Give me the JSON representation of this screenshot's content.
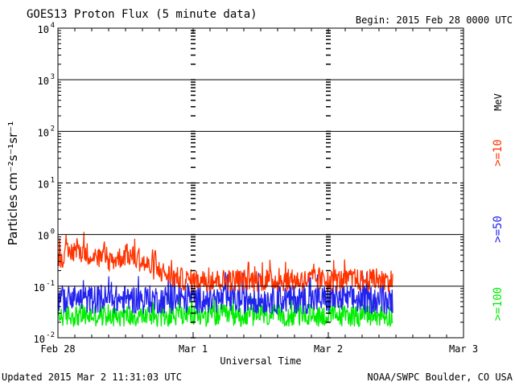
{
  "header": {
    "title": "GOES13 Proton Flux (5 minute data)",
    "begin": "Begin: 2015 Feb 28 0000 UTC"
  },
  "footer": {
    "updated": "Updated 2015 Mar  2 11:31:03 UTC",
    "credit": "NOAA/SWPC Boulder, CO USA"
  },
  "chart_data": {
    "type": "line",
    "title": "GOES13 Proton Flux (5 minute data)",
    "xlabel": "Universal Time",
    "ylabel": "Particles cm⁻²s⁻¹sr⁻¹",
    "y_scale": "log",
    "ylim": [
      0.01,
      10000
    ],
    "xlim_days": [
      0,
      3
    ],
    "x_ticks": [
      {
        "day": 0,
        "label": "Feb 28"
      },
      {
        "day": 1,
        "label": "Mar 1"
      },
      {
        "day": 2,
        "label": "Mar 2"
      },
      {
        "day": 3,
        "label": "Mar 3"
      }
    ],
    "y_ticks": [
      {
        "value": 10000,
        "base": "10",
        "exp": "4"
      },
      {
        "value": 1000,
        "base": "10",
        "exp": "3"
      },
      {
        "value": 100,
        "base": "10",
        "exp": "2"
      },
      {
        "value": 10,
        "base": "10",
        "exp": "1"
      },
      {
        "value": 1,
        "base": "10",
        "exp": "0"
      },
      {
        "value": 0.1,
        "base": "10",
        "exp": "-1"
      },
      {
        "value": 0.01,
        "base": "10",
        "exp": "-2"
      }
    ],
    "reference_lines": [
      {
        "value": 1000,
        "style": "solid"
      },
      {
        "value": 100,
        "style": "solid"
      },
      {
        "value": 10,
        "style": "dashed"
      },
      {
        "value": 1,
        "style": "solid"
      },
      {
        "value": 0.1,
        "style": "solid"
      }
    ],
    "unit_label": "MeV",
    "series": [
      {
        "name": ">=10",
        "color": "#ff3300",
        "x_days": [
          0,
          0.05,
          0.1,
          0.15,
          0.2,
          0.25,
          0.3,
          0.35,
          0.4,
          0.45,
          0.5,
          0.55,
          0.6,
          0.65,
          0.7,
          0.75,
          0.8,
          0.85,
          0.9,
          0.95,
          1.0,
          1.05,
          1.1,
          1.15,
          1.2,
          1.25,
          1.3,
          1.35,
          1.4,
          1.45,
          1.5,
          1.55,
          1.6,
          1.65,
          1.7,
          1.75,
          1.8,
          1.85,
          1.9,
          1.95,
          2.0,
          2.05,
          2.1,
          2.15,
          2.2,
          2.25,
          2.3,
          2.35,
          2.4,
          2.45,
          2.48
        ],
        "values": [
          0.35,
          0.4,
          0.45,
          0.5,
          0.45,
          0.4,
          0.35,
          0.3,
          0.32,
          0.35,
          0.4,
          0.38,
          0.32,
          0.26,
          0.22,
          0.2,
          0.17,
          0.15,
          0.14,
          0.13,
          0.13,
          0.13,
          0.13,
          0.13,
          0.13,
          0.13,
          0.13,
          0.13,
          0.13,
          0.13,
          0.13,
          0.13,
          0.13,
          0.13,
          0.13,
          0.13,
          0.13,
          0.13,
          0.13,
          0.13,
          0.13,
          0.13,
          0.13,
          0.13,
          0.13,
          0.13,
          0.13,
          0.13,
          0.13,
          0.13,
          0.13
        ]
      },
      {
        "name": ">=50",
        "color": "#2222ee",
        "x_days": [
          0,
          0.25,
          0.5,
          0.75,
          1.0,
          1.25,
          1.5,
          1.75,
          2.0,
          2.25,
          2.48
        ],
        "values": [
          0.055,
          0.055,
          0.055,
          0.055,
          0.055,
          0.055,
          0.055,
          0.055,
          0.055,
          0.055,
          0.055
        ]
      },
      {
        "name": ">=100",
        "color": "#00ee00",
        "x_days": [
          0,
          0.25,
          0.5,
          0.75,
          1.0,
          1.25,
          1.5,
          1.75,
          2.0,
          2.25,
          2.48
        ],
        "values": [
          0.027,
          0.027,
          0.027,
          0.027,
          0.027,
          0.027,
          0.027,
          0.027,
          0.027,
          0.027,
          0.027
        ]
      }
    ]
  }
}
